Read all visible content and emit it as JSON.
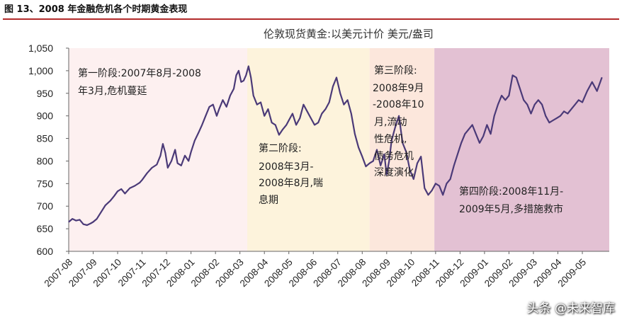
{
  "figure_title": "图 13、2008 年金融危机各个时期黄金表现",
  "watermark": "头条 @未来智库",
  "chart_data": {
    "type": "line",
    "title": "伦敦现货黄金:以美元计价 美元/盎司",
    "ylim": [
      600,
      1050
    ],
    "yticks": [
      600,
      650,
      700,
      750,
      800,
      850,
      900,
      950,
      1000,
      1050
    ],
    "ytick_labels": [
      "600",
      "650",
      "700",
      "750",
      "800",
      "850",
      "900",
      "950",
      "1,000",
      "1,050"
    ],
    "x_categories": [
      "2007-08",
      "2007-09",
      "2007-10",
      "2007-11",
      "2007-12",
      "2008-01",
      "2008-02",
      "2008-03",
      "2008-04",
      "2008-05",
      "2008-06",
      "2008-07",
      "2008-08",
      "2008-09",
      "2008-10",
      "2008-11",
      "2008-12",
      "2009-01",
      "2009-02",
      "2009-03",
      "2009-04",
      "2009-05"
    ],
    "grid": false,
    "line_color": "#4b3a78",
    "phases": [
      {
        "label": "第一阶段:2007年8月-2008年3月,危机蔓延",
        "start": 0,
        "end": 7.3,
        "color": "#fdf0f0"
      },
      {
        "label": "第二阶段:2008年3月-2008年8月,喘息期",
        "start": 7.3,
        "end": 12.3,
        "color": "#fdf3dc"
      },
      {
        "label": "第三阶段:2008年9月-2008年10月,流动性危机,债务危机深度演化",
        "start": 12.3,
        "end": 14.95,
        "color": "#fce7dc"
      },
      {
        "label": "第四阶段:2008年11月-2009年5月,多措施救市",
        "start": 14.95,
        "end": 22.1,
        "color": "#e3c1d3"
      }
    ],
    "series": [
      {
        "points": [
          [
            0.0,
            665
          ],
          [
            0.15,
            672
          ],
          [
            0.3,
            668
          ],
          [
            0.45,
            670
          ],
          [
            0.6,
            660
          ],
          [
            0.75,
            658
          ],
          [
            0.9,
            662
          ],
          [
            1.0,
            665
          ],
          [
            1.15,
            672
          ],
          [
            1.3,
            685
          ],
          [
            1.5,
            702
          ],
          [
            1.7,
            712
          ],
          [
            1.85,
            722
          ],
          [
            2.0,
            733
          ],
          [
            2.15,
            738
          ],
          [
            2.3,
            728
          ],
          [
            2.5,
            740
          ],
          [
            2.7,
            745
          ],
          [
            2.9,
            752
          ],
          [
            3.0,
            758
          ],
          [
            3.2,
            773
          ],
          [
            3.4,
            785
          ],
          [
            3.6,
            792
          ],
          [
            3.75,
            812
          ],
          [
            3.85,
            838
          ],
          [
            3.95,
            818
          ],
          [
            4.05,
            785
          ],
          [
            4.2,
            800
          ],
          [
            4.35,
            825
          ],
          [
            4.45,
            795
          ],
          [
            4.6,
            790
          ],
          [
            4.75,
            812
          ],
          [
            4.9,
            800
          ],
          [
            5.0,
            820
          ],
          [
            5.15,
            845
          ],
          [
            5.3,
            862
          ],
          [
            5.45,
            880
          ],
          [
            5.6,
            900
          ],
          [
            5.75,
            920
          ],
          [
            5.9,
            925
          ],
          [
            6.05,
            900
          ],
          [
            6.15,
            915
          ],
          [
            6.3,
            935
          ],
          [
            6.45,
            920
          ],
          [
            6.6,
            945
          ],
          [
            6.75,
            960
          ],
          [
            6.85,
            990
          ],
          [
            6.95,
            1000
          ],
          [
            7.05,
            975
          ],
          [
            7.15,
            978
          ],
          [
            7.25,
            990
          ],
          [
            7.35,
            1010
          ],
          [
            7.45,
            985
          ],
          [
            7.55,
            945
          ],
          [
            7.7,
            925
          ],
          [
            7.85,
            930
          ],
          [
            8.0,
            900
          ],
          [
            8.15,
            915
          ],
          [
            8.3,
            885
          ],
          [
            8.45,
            880
          ],
          [
            8.6,
            858
          ],
          [
            8.75,
            870
          ],
          [
            8.9,
            880
          ],
          [
            9.0,
            890
          ],
          [
            9.15,
            905
          ],
          [
            9.3,
            880
          ],
          [
            9.45,
            895
          ],
          [
            9.6,
            925
          ],
          [
            9.75,
            910
          ],
          [
            9.9,
            895
          ],
          [
            10.05,
            880
          ],
          [
            10.2,
            885
          ],
          [
            10.35,
            905
          ],
          [
            10.5,
            915
          ],
          [
            10.65,
            930
          ],
          [
            10.8,
            965
          ],
          [
            10.95,
            985
          ],
          [
            11.1,
            950
          ],
          [
            11.25,
            925
          ],
          [
            11.4,
            935
          ],
          [
            11.55,
            905
          ],
          [
            11.7,
            860
          ],
          [
            11.85,
            830
          ],
          [
            12.0,
            810
          ],
          [
            12.15,
            788
          ],
          [
            12.3,
            795
          ],
          [
            12.45,
            800
          ],
          [
            12.6,
            825
          ],
          [
            12.75,
            790
          ],
          [
            12.9,
            815
          ],
          [
            13.0,
            770
          ],
          [
            13.1,
            800
          ],
          [
            13.2,
            845
          ],
          [
            13.35,
            875
          ],
          [
            13.5,
            900
          ],
          [
            13.65,
            840
          ],
          [
            13.8,
            820
          ],
          [
            13.95,
            780
          ],
          [
            14.1,
            760
          ],
          [
            14.25,
            795
          ],
          [
            14.4,
            810
          ],
          [
            14.55,
            740
          ],
          [
            14.7,
            725
          ],
          [
            14.85,
            735
          ],
          [
            15.0,
            750
          ],
          [
            15.15,
            745
          ],
          [
            15.3,
            725
          ],
          [
            15.45,
            750
          ],
          [
            15.6,
            760
          ],
          [
            15.75,
            790
          ],
          [
            15.9,
            815
          ],
          [
            16.05,
            840
          ],
          [
            16.2,
            860
          ],
          [
            16.35,
            870
          ],
          [
            16.5,
            880
          ],
          [
            16.65,
            860
          ],
          [
            16.8,
            840
          ],
          [
            16.95,
            855
          ],
          [
            17.1,
            880
          ],
          [
            17.25,
            860
          ],
          [
            17.4,
            900
          ],
          [
            17.55,
            925
          ],
          [
            17.7,
            945
          ],
          [
            17.85,
            935
          ],
          [
            18.0,
            945
          ],
          [
            18.15,
            990
          ],
          [
            18.3,
            985
          ],
          [
            18.45,
            960
          ],
          [
            18.6,
            935
          ],
          [
            18.75,
            925
          ],
          [
            18.9,
            905
          ],
          [
            19.05,
            925
          ],
          [
            19.2,
            935
          ],
          [
            19.35,
            925
          ],
          [
            19.5,
            900
          ],
          [
            19.65,
            885
          ],
          [
            19.8,
            890
          ],
          [
            19.95,
            895
          ],
          [
            20.1,
            900
          ],
          [
            20.25,
            910
          ],
          [
            20.4,
            905
          ],
          [
            20.55,
            915
          ],
          [
            20.7,
            925
          ],
          [
            20.85,
            935
          ],
          [
            21.0,
            930
          ],
          [
            21.2,
            955
          ],
          [
            21.4,
            975
          ],
          [
            21.6,
            955
          ],
          [
            21.8,
            985
          ]
        ]
      }
    ]
  }
}
